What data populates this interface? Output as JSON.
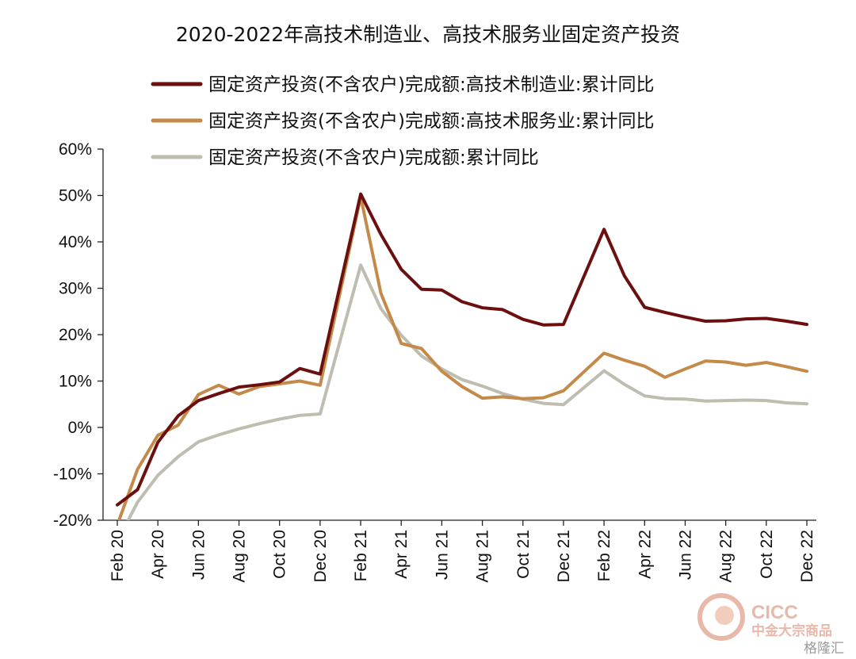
{
  "chart_data": {
    "type": "line",
    "title": "2020-2022年高技术制造业、高技术服务业固定资产投资",
    "ylim": [
      -20,
      60
    ],
    "yticks": [
      "60%",
      "50%",
      "40%",
      "30%",
      "20%",
      "10%",
      "0%",
      "-10%",
      "-20%"
    ],
    "xtick_labels": [
      "Feb 20",
      "Apr 20",
      "Jun 20",
      "Aug 20",
      "Oct 20",
      "Dec 20",
      "Feb 21",
      "Apr 21",
      "Jun 21",
      "Aug 21",
      "Oct 21",
      "Dec 21",
      "Feb 22",
      "Apr 22",
      "Jun 22",
      "Aug 22",
      "Oct 22",
      "Dec 22"
    ],
    "categories": [
      "2020-02",
      "2020-03",
      "2020-04",
      "2020-05",
      "2020-06",
      "2020-07",
      "2020-08",
      "2020-09",
      "2020-10",
      "2020-11",
      "2020-12",
      "2021-02",
      "2021-03",
      "2021-04",
      "2021-05",
      "2021-06",
      "2021-07",
      "2021-08",
      "2021-09",
      "2021-10",
      "2021-11",
      "2021-12",
      "2022-02",
      "2022-03",
      "2022-04",
      "2022-05",
      "2022-06",
      "2022-07",
      "2022-08",
      "2022-09",
      "2022-10",
      "2022-11",
      "2022-12"
    ],
    "grid": false,
    "legend_position": "top",
    "series": [
      {
        "name": "固定资产投资(不含农户)完成额:高技术制造业:累计同比",
        "color": "#6b0f0f",
        "values": [
          -16.7,
          -13.4,
          -3.2,
          2.5,
          5.8,
          7.3,
          8.7,
          9.2,
          9.8,
          12.7,
          11.5,
          50.3,
          41.6,
          34.1,
          29.8,
          29.6,
          27.1,
          25.8,
          25.4,
          23.3,
          22.1,
          22.2,
          42.7,
          32.7,
          25.9,
          24.8,
          23.8,
          22.9,
          23.0,
          23.4,
          23.5,
          22.9,
          22.2
        ]
      },
      {
        "name": "固定资产投资(不含农户)完成额:高技术服务业:累计同比",
        "color": "#c48a4a",
        "values": [
          -21.0,
          -9.0,
          -1.7,
          0.5,
          7.1,
          9.1,
          7.2,
          8.8,
          9.4,
          10.0,
          9.1,
          49.7,
          28.9,
          18.1,
          17.0,
          12.1,
          8.8,
          6.3,
          6.6,
          6.2,
          6.4,
          7.9,
          16.0,
          14.5,
          13.2,
          10.8,
          12.6,
          14.3,
          14.1,
          13.4,
          14.0,
          13.1,
          12.1
        ]
      },
      {
        "name": "固定资产投资(不含农户)完成额:累计同比",
        "color": "#bfbdb0",
        "values": [
          -24.5,
          -16.1,
          -10.3,
          -6.3,
          -3.1,
          -1.6,
          -0.3,
          0.8,
          1.8,
          2.6,
          2.9,
          35.0,
          25.6,
          19.9,
          15.4,
          12.6,
          10.3,
          8.9,
          7.3,
          6.1,
          5.2,
          4.9,
          12.2,
          9.3,
          6.8,
          6.2,
          6.1,
          5.7,
          5.8,
          5.9,
          5.8,
          5.3,
          5.1
        ]
      }
    ]
  },
  "watermark": {
    "brand_en": "CICC",
    "brand_cn": "中金大宗商品",
    "platform": "格隆汇",
    "brand_color": "#e8b9a9"
  }
}
